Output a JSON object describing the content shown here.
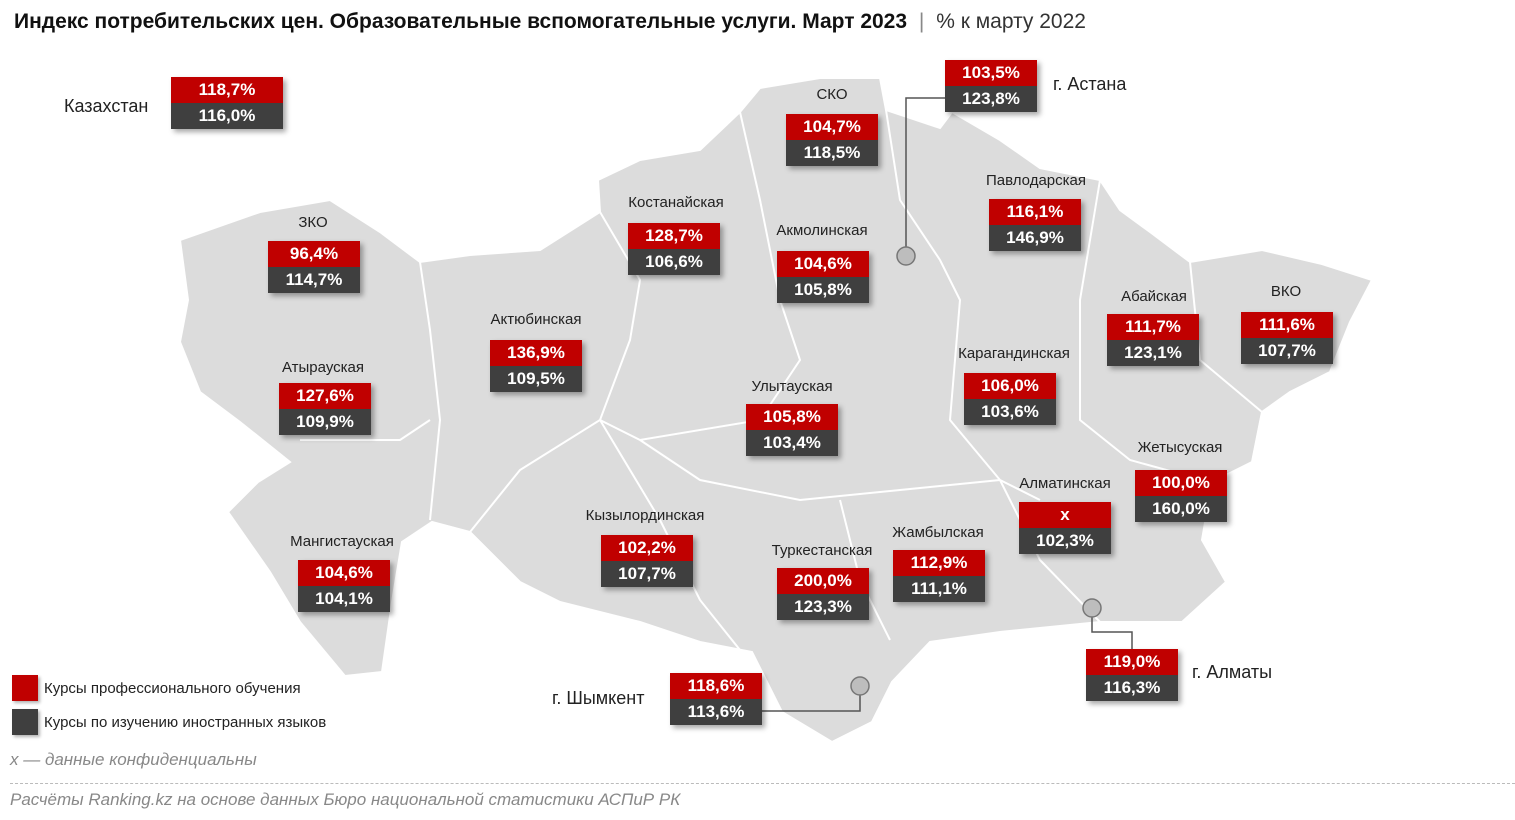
{
  "title": {
    "main": "Индекс потребительских цен. Образовательные вспомогательные услуги. Март 2023",
    "separator": "|",
    "subtitle": "% к марту 2022"
  },
  "colors": {
    "professional": "#c00000",
    "languages": "#3f3f3f",
    "map": "#dcdcdc"
  },
  "country": {
    "name": "Казахстан",
    "professional": "118,7%",
    "languages": "116,0%"
  },
  "regions": [
    {
      "name": "СКО",
      "professional": "104,7%",
      "languages": "118,5%"
    },
    {
      "name": "г. Астана",
      "professional": "103,5%",
      "languages": "123,8%"
    },
    {
      "name": "Павлодарская",
      "professional": "116,1%",
      "languages": "146,9%"
    },
    {
      "name": "Костанайская",
      "professional": "128,7%",
      "languages": "106,6%"
    },
    {
      "name": "Акмолинская",
      "professional": "104,6%",
      "languages": "105,8%"
    },
    {
      "name": "ЗКО",
      "professional": "96,4%",
      "languages": "114,7%"
    },
    {
      "name": "Актюбинская",
      "professional": "136,9%",
      "languages": "109,5%"
    },
    {
      "name": "Атырауская",
      "professional": "127,6%",
      "languages": "109,9%"
    },
    {
      "name": "Абайская",
      "professional": "111,7%",
      "languages": "123,1%"
    },
    {
      "name": "ВКО",
      "professional": "111,6%",
      "languages": "107,7%"
    },
    {
      "name": "Карагандинская",
      "professional": "106,0%",
      "languages": "103,6%"
    },
    {
      "name": "Улытауская",
      "professional": "105,8%",
      "languages": "103,4%"
    },
    {
      "name": "Жетысуская",
      "professional": "100,0%",
      "languages": "160,0%"
    },
    {
      "name": "Алматинская",
      "professional": "x",
      "languages": "102,3%"
    },
    {
      "name": "Кызылординская",
      "professional": "102,2%",
      "languages": "107,7%"
    },
    {
      "name": "Мангистауская",
      "professional": "104,6%",
      "languages": "104,1%"
    },
    {
      "name": "Туркестанская",
      "professional": "200,0%",
      "languages": "123,3%"
    },
    {
      "name": "Жамбылская",
      "professional": "112,9%",
      "languages": "111,1%"
    },
    {
      "name": "г. Алматы",
      "professional": "119,0%",
      "languages": "116,3%"
    },
    {
      "name": "г. Шымкент",
      "professional": "118,6%",
      "languages": "113,6%"
    }
  ],
  "legend": {
    "professional": "Курсы профессионального обучения",
    "languages": "Курсы по изучению иностранных языков"
  },
  "note": "x — данные конфиденциальны",
  "source": "Расчёты Ranking.kz на основе данных Бюро национальной статистики АСПиР РК"
}
